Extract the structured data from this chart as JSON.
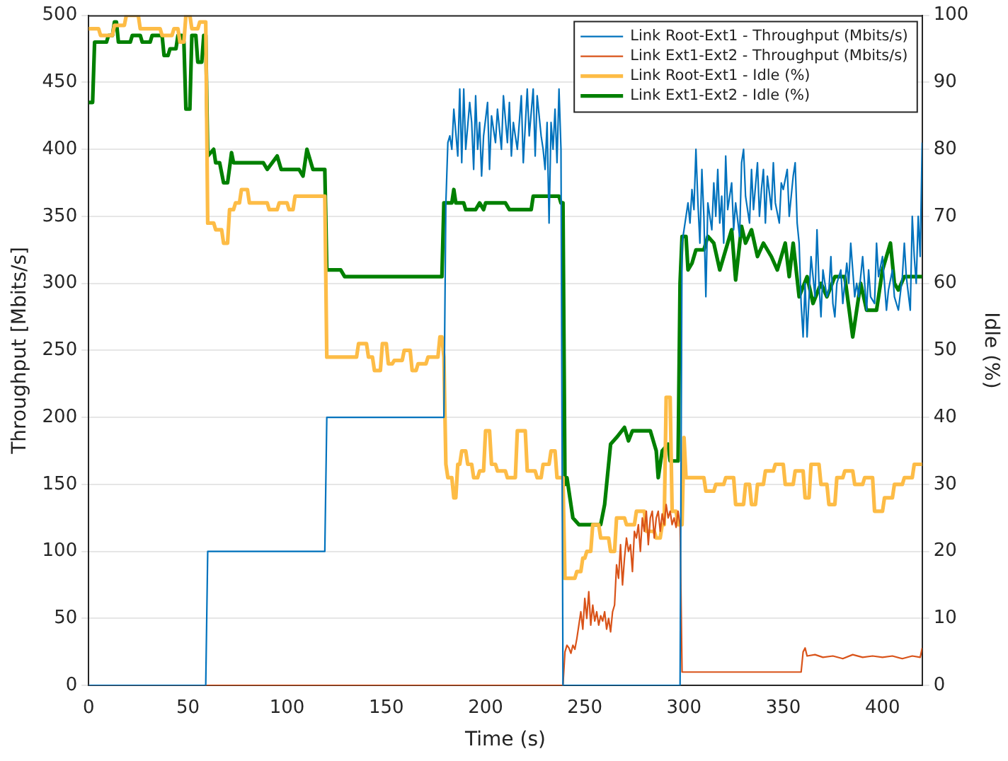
{
  "chart_data": {
    "type": "line",
    "xlabel": "Time (s)",
    "ylabel": "Throughput [Mbits/s]",
    "y2label": "Idle (%)",
    "xlim": [
      0,
      420
    ],
    "xticks": [
      0,
      50,
      100,
      150,
      200,
      250,
      300,
      350,
      400
    ],
    "ylim": [
      0,
      500
    ],
    "yticks": [
      0,
      50,
      100,
      150,
      200,
      250,
      300,
      350,
      400,
      450,
      500
    ],
    "y2lim": [
      0,
      100
    ],
    "y2ticks": [
      0,
      10,
      20,
      30,
      40,
      50,
      60,
      70,
      80,
      90,
      100
    ],
    "grid": "y",
    "legend": "top right",
    "marker": "none",
    "line_style": "solid",
    "series": [
      {
        "name": "Link Root-Ext1 - Throughput (Mbits/s)",
        "color": "#0072bd",
        "x": [
          0,
          59,
          60,
          119,
          120,
          179,
          180,
          181,
          182,
          183,
          184,
          186,
          187,
          188,
          189,
          190,
          192,
          193,
          194,
          195,
          196,
          197,
          198,
          199,
          201,
          202,
          203,
          205,
          206,
          208,
          209,
          211,
          212,
          213,
          214,
          216,
          218,
          219,
          221,
          222,
          224,
          225,
          226,
          228,
          229,
          230,
          231,
          232,
          233,
          234,
          235,
          236,
          237,
          238,
          239,
          298,
          299,
          301,
          302,
          303,
          304,
          305,
          306,
          307,
          308,
          309,
          310,
          311,
          312,
          314,
          315,
          316,
          317,
          318,
          319,
          320,
          321,
          322,
          324,
          325,
          326,
          328,
          329,
          330,
          331,
          333,
          334,
          335,
          337,
          338,
          339,
          340,
          341,
          342,
          344,
          345,
          346,
          348,
          349,
          350,
          352,
          353,
          355,
          356,
          357,
          358,
          359,
          360,
          361,
          362,
          363,
          364,
          366,
          367,
          368,
          369,
          370,
          372,
          373,
          374,
          375,
          376,
          377,
          379,
          380,
          382,
          383,
          384,
          386,
          387,
          388,
          390,
          392,
          393,
          394,
          396,
          397,
          398,
          400,
          402,
          403,
          405,
          406,
          408,
          410,
          411,
          412,
          414,
          415,
          416,
          417,
          418,
          419,
          420
        ],
        "values": [
          0,
          0,
          100,
          100,
          200,
          200,
          360,
          405,
          410,
          400,
          430,
          395,
          445,
          390,
          445,
          400,
          435,
          420,
          385,
          440,
          400,
          420,
          380,
          410,
          435,
          385,
          425,
          405,
          430,
          400,
          440,
          405,
          435,
          395,
          420,
          400,
          440,
          390,
          445,
          410,
          445,
          395,
          440,
          410,
          400,
          385,
          420,
          345,
          420,
          400,
          430,
          390,
          445,
          400,
          0,
          0,
          330,
          350,
          360,
          345,
          370,
          355,
          400,
          360,
          330,
          385,
          350,
          290,
          360,
          340,
          375,
          350,
          385,
          345,
          365,
          330,
          395,
          355,
          375,
          340,
          360,
          335,
          390,
          400,
          365,
          345,
          385,
          355,
          390,
          350,
          370,
          385,
          345,
          380,
          355,
          390,
          360,
          345,
          375,
          370,
          385,
          350,
          380,
          390,
          345,
          330,
          285,
          260,
          300,
          260,
          290,
          320,
          290,
          340,
          300,
          275,
          310,
          290,
          295,
          320,
          285,
          275,
          300,
          310,
          285,
          315,
          300,
          330,
          290,
          300,
          290,
          320,
          280,
          310,
          290,
          285,
          330,
          305,
          320,
          280,
          295,
          310,
          290,
          280,
          305,
          330,
          305,
          280,
          350,
          320,
          300,
          350,
          320,
          405
        ]
      },
      {
        "name": "Link Ext1-Ext2 - Throughput (Mbits/s)",
        "color": "#d95319",
        "x": [
          0,
          239,
          240,
          241,
          242,
          243,
          244,
          245,
          246,
          247,
          248,
          249,
          250,
          251,
          252,
          253,
          254,
          255,
          256,
          257,
          258,
          259,
          260,
          261,
          262,
          263,
          264,
          265,
          266,
          267,
          268,
          269,
          270,
          271,
          272,
          273,
          274,
          275,
          276,
          277,
          278,
          279,
          280,
          281,
          282,
          283,
          284,
          285,
          286,
          287,
          288,
          289,
          290,
          291,
          292,
          293,
          294,
          295,
          296,
          297,
          298,
          299,
          359,
          360,
          361,
          362,
          366,
          370,
          375,
          380,
          385,
          390,
          395,
          400,
          405,
          410,
          415,
          419,
          420
        ],
        "values": [
          0,
          0,
          25,
          30,
          28,
          24,
          30,
          27,
          35,
          45,
          55,
          42,
          65,
          50,
          70,
          45,
          60,
          48,
          55,
          45,
          52,
          48,
          55,
          42,
          50,
          40,
          55,
          60,
          90,
          80,
          105,
          75,
          95,
          110,
          100,
          105,
          85,
          115,
          110,
          120,
          100,
          125,
          115,
          130,
          105,
          125,
          130,
          110,
          125,
          130,
          115,
          128,
          120,
          135,
          125,
          130,
          120,
          125,
          118,
          130,
          120,
          10,
          10,
          25,
          28,
          22,
          23,
          21,
          22,
          20,
          23,
          21,
          22,
          21,
          22,
          20,
          22,
          21,
          28
        ]
      },
      {
        "name": "Link Root-Ext1 - Idle (%)",
        "color": "#fdbc46",
        "axis": "y2",
        "x": [
          0,
          5,
          6,
          12,
          13,
          18,
          19,
          25,
          26,
          36,
          37,
          42,
          43,
          45,
          46,
          48,
          49,
          51,
          52,
          55,
          56,
          59,
          60,
          63,
          64,
          67,
          68,
          70,
          71,
          73,
          74,
          76,
          77,
          80,
          81,
          90,
          91,
          95,
          96,
          100,
          101,
          103,
          104,
          106,
          107,
          119,
          120,
          135,
          136,
          140,
          141,
          143,
          144,
          147,
          148,
          150,
          151,
          153,
          154,
          158,
          159,
          162,
          163,
          165,
          166,
          170,
          171,
          176,
          177,
          178,
          179,
          180,
          181,
          183,
          184,
          185,
          186,
          187,
          188,
          190,
          191,
          193,
          194,
          196,
          197,
          199,
          200,
          202,
          203,
          205,
          206,
          210,
          211,
          215,
          216,
          220,
          221,
          225,
          226,
          228,
          229,
          232,
          233,
          235,
          236,
          239,
          240,
          245,
          246,
          248,
          249,
          250,
          251,
          253,
          254,
          257,
          258,
          262,
          263,
          265,
          266,
          270,
          271,
          275,
          276,
          280,
          281,
          285,
          286,
          288,
          289,
          290,
          291,
          293,
          294,
          296,
          297,
          299,
          300,
          301,
          302,
          305,
          306,
          310,
          311,
          315,
          316,
          320,
          321,
          325,
          326,
          330,
          331,
          333,
          334,
          336,
          337,
          340,
          341,
          345,
          346,
          350,
          351,
          355,
          356,
          360,
          361,
          363,
          364,
          368,
          369,
          372,
          373,
          376,
          377,
          380,
          381,
          385,
          386,
          390,
          391,
          395,
          396,
          400,
          401,
          405,
          406,
          410,
          411,
          415,
          416,
          420
        ],
        "values": [
          98,
          98,
          97,
          97,
          98.5,
          98.5,
          100,
          100,
          98,
          98,
          97,
          97,
          98,
          98,
          96,
          96,
          100,
          100,
          98,
          98,
          99,
          99,
          69,
          69,
          68,
          68,
          66,
          66,
          71,
          71,
          72,
          72,
          74,
          74,
          72,
          72,
          71,
          71,
          72,
          72,
          71,
          71,
          73,
          73,
          73,
          73,
          49,
          49,
          51,
          51,
          49,
          49,
          47,
          47,
          51,
          51,
          48,
          48,
          48.5,
          48.5,
          50,
          50,
          47,
          47,
          48,
          48,
          49,
          49,
          52,
          52,
          49,
          33,
          31,
          31,
          28,
          28,
          33,
          33,
          35,
          35,
          33,
          33,
          31,
          31,
          32,
          32,
          38,
          38,
          33,
          33,
          32,
          32,
          31,
          31,
          38,
          38,
          32,
          32,
          31,
          31,
          33,
          33,
          35,
          35,
          31,
          31,
          16,
          16,
          17,
          17,
          19,
          19,
          20,
          20,
          24,
          24,
          22,
          22,
          20,
          20,
          25,
          25,
          24,
          24,
          26,
          26,
          23,
          23,
          22,
          22,
          24,
          24,
          43,
          43,
          26,
          26,
          24,
          24,
          37,
          31,
          31,
          31,
          31,
          31,
          29,
          29,
          30,
          30,
          31,
          31,
          27,
          27,
          30,
          30,
          27,
          27,
          30,
          30,
          32,
          32,
          33,
          33,
          30,
          30,
          32,
          32,
          28,
          28,
          33,
          33,
          30,
          30,
          27,
          27,
          31,
          31,
          32,
          32,
          30,
          30,
          31,
          31,
          26,
          26,
          28,
          28,
          30,
          30,
          31,
          31,
          33,
          33
        ]
      },
      {
        "name": "Link Ext1-Ext2 - Idle (%)",
        "color": "#008000",
        "axis": "y2",
        "x": [
          0,
          2,
          3,
          9,
          10,
          12,
          13,
          14,
          15,
          21,
          22,
          26,
          27,
          31,
          32,
          37,
          38,
          40,
          41,
          44,
          45,
          47,
          48,
          49,
          51,
          52,
          54,
          55,
          57,
          58,
          59,
          60,
          63,
          64,
          66,
          68,
          70,
          72,
          73,
          88,
          90,
          95,
          97,
          106,
          108,
          110,
          113,
          119,
          120,
          127,
          129,
          178,
          179,
          183,
          184,
          185,
          189,
          190,
          195,
          197,
          199,
          200,
          210,
          212,
          223,
          224,
          237,
          238,
          239,
          240,
          241,
          244,
          247,
          258,
          260,
          263,
          266,
          270,
          272,
          274,
          283,
          286,
          287,
          289,
          292,
          293,
          297,
          298,
          299,
          301,
          302,
          304,
          306,
          310,
          312,
          315,
          318,
          320,
          324,
          326,
          329,
          331,
          334,
          337,
          340,
          344,
          347,
          351,
          353,
          355,
          358,
          362,
          365,
          369,
          372,
          376,
          381,
          385,
          389,
          392,
          397,
          400,
          404,
          406,
          408,
          411,
          415,
          420
        ],
        "values": [
          87,
          87,
          96,
          96,
          97,
          97,
          99,
          99,
          96,
          96,
          97,
          97,
          96,
          96,
          97,
          97,
          94,
          94,
          95,
          95,
          97,
          97,
          96,
          86,
          86,
          97,
          97,
          93,
          93,
          97,
          97,
          79,
          80,
          78,
          78,
          75,
          75,
          79.5,
          78,
          78,
          77,
          79,
          77,
          77,
          76,
          80,
          77,
          77,
          62,
          62,
          61,
          61,
          72,
          72,
          74,
          72,
          72,
          71,
          71,
          72,
          71,
          72,
          72,
          71,
          71,
          73,
          73,
          72,
          72,
          30,
          31,
          25,
          24,
          24,
          27,
          36,
          37,
          38.5,
          36.5,
          38,
          38,
          35,
          31,
          35,
          36,
          33.5,
          33.5,
          60,
          67,
          67,
          62,
          63,
          65,
          65,
          67,
          66,
          62,
          64,
          68,
          60.5,
          68.5,
          66,
          68,
          64,
          66,
          64,
          62,
          66,
          61,
          66,
          58,
          61,
          57,
          60,
          58,
          61,
          61,
          52,
          60,
          56,
          56,
          62,
          66,
          60,
          59,
          61,
          61,
          61
        ]
      }
    ]
  }
}
